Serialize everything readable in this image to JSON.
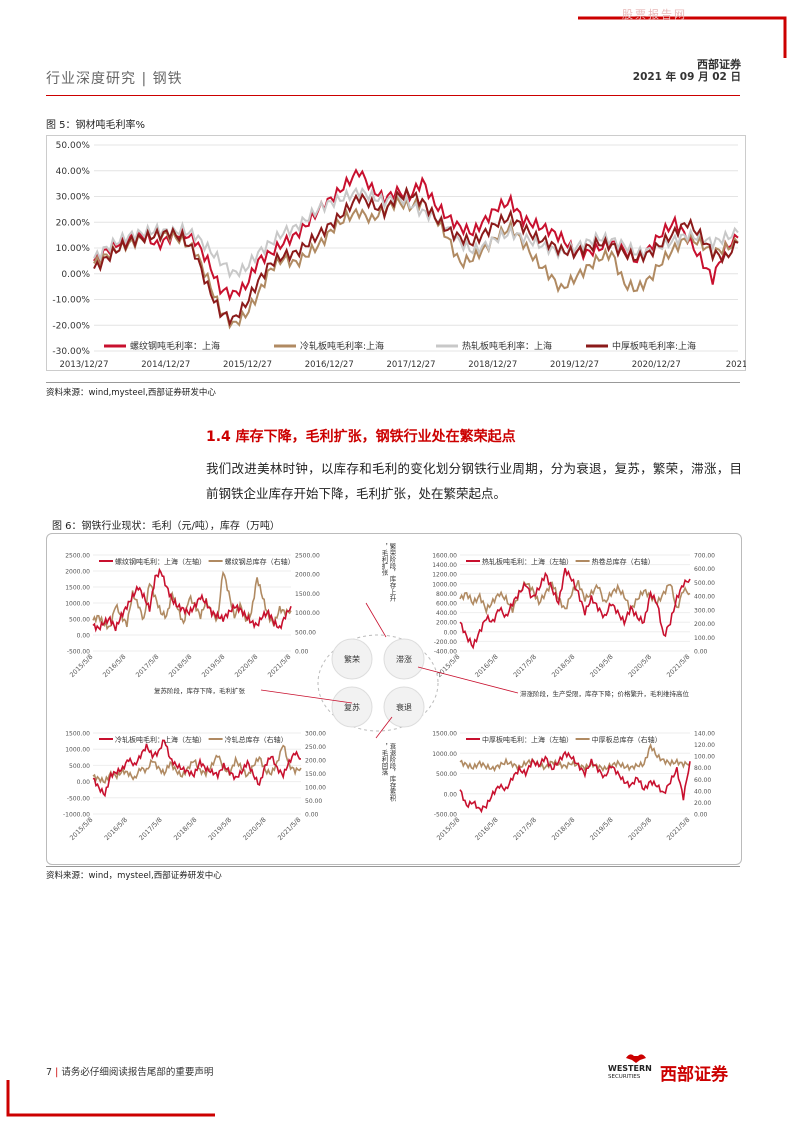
{
  "header": {
    "watermark": "股票报告网",
    "left": "行业深度研究 | 钢铁",
    "brand": "西部证券",
    "date": "2021 年 09 月 02 日"
  },
  "figure5": {
    "title": "图 5：钢材吨毛利率%",
    "source": "资料来源：wind,mysteel,西部证券研发中心",
    "chart_data": {
      "type": "line",
      "yticks": [
        "50.00%",
        "40.00%",
        "30.00%",
        "20.00%",
        "10.00%",
        "0.00%",
        "-10.00%",
        "-20.00%",
        "-30.00%"
      ],
      "ylim": [
        -30,
        50
      ],
      "xticks": [
        "2013/12/27",
        "2014/12/27",
        "2015/12/27",
        "2016/12/27",
        "2017/12/27",
        "2018/12/27",
        "2019/12/27",
        "2020/12/27",
        "2021/"
      ],
      "series": [
        {
          "name": "螺纹钢吨毛利率：上海",
          "color": "#c8102e",
          "values": [
            5,
            9,
            12,
            14,
            15,
            11,
            14,
            16,
            13,
            5,
            -6,
            -8,
            -5,
            5,
            8,
            12,
            15,
            20,
            26,
            30,
            35,
            40,
            33,
            29,
            32,
            30,
            36,
            27,
            22,
            18,
            16,
            21,
            26,
            28,
            21,
            19,
            17,
            14,
            9,
            8,
            10,
            12,
            9,
            5,
            10,
            16,
            20,
            14,
            6,
            -2,
            10,
            14
          ]
        },
        {
          "name": "冷轧板吨毛利率:上海",
          "color": "#b08a62",
          "values": [
            4,
            7,
            10,
            12,
            14,
            15,
            15,
            13,
            9,
            -2,
            -14,
            -20,
            -16,
            -8,
            2,
            6,
            4,
            8,
            12,
            18,
            22,
            24,
            21,
            25,
            28,
            26,
            28,
            22,
            14,
            4,
            6,
            10,
            15,
            18,
            12,
            5,
            0,
            -6,
            -2,
            2,
            6,
            8,
            -4,
            -6,
            -2,
            5,
            10,
            14,
            12,
            8,
            10,
            12
          ]
        },
        {
          "name": "热轧板吨毛利率：上海",
          "color": "#c8c8c8",
          "values": [
            6,
            10,
            13,
            15,
            16,
            17,
            16,
            17,
            15,
            10,
            5,
            0,
            2,
            8,
            12,
            16,
            18,
            22,
            26,
            28,
            30,
            32,
            30,
            28,
            30,
            27,
            24,
            22,
            18,
            12,
            9,
            11,
            14,
            16,
            14,
            12,
            10,
            8,
            10,
            12,
            14,
            13,
            11,
            8,
            9,
            11,
            13,
            15,
            14,
            12,
            14,
            16
          ]
        },
        {
          "name": "中厚板吨毛利率:上海",
          "color": "#8b1a1a",
          "values": [
            2,
            6,
            10,
            13,
            14,
            15,
            16,
            14,
            8,
            -5,
            -15,
            -18,
            -12,
            -3,
            4,
            7,
            8,
            12,
            16,
            20,
            25,
            30,
            27,
            24,
            30,
            31,
            28,
            22,
            17,
            14,
            12,
            16,
            20,
            22,
            18,
            14,
            12,
            9,
            8,
            10,
            12,
            11,
            8,
            6,
            8,
            12,
            16,
            20,
            15,
            8,
            6,
            12
          ]
        }
      ]
    }
  },
  "section": {
    "title": "1.4  库存下降，毛利扩张，钢铁行业处在繁荣起点",
    "body": "我们改进美林时钟，以库存和毛利的变化划分钢铁行业周期，分为衰退，复苏，繁荣，滞涨，目前钢铁企业库存开始下降，毛利扩张，处在繁荣起点。"
  },
  "figure6": {
    "title": "图 6：钢铁行业现状：毛利（元/吨），库存（万吨）",
    "source": "资料来源：wind，mysteel,西部证券研发中心",
    "xticks": [
      "2015/5/8",
      "2016/5/8",
      "2017/5/8",
      "2018/5/8",
      "2019/5/8",
      "2020/5/8",
      "2021/5/8"
    ],
    "charts": [
      {
        "legend_left": "螺纹钢吨毛利：上海（左轴）",
        "legend_right": "螺纹钢总库存（右轴）",
        "left_ticks": [
          "2500.00",
          "2000.00",
          "1500.00",
          "1000.00",
          "500.00",
          "0.00",
          "-500.00"
        ],
        "right_ticks": [
          "2500.00",
          "2000.00",
          "1500.00",
          "1000.00",
          "500.00",
          "0.00"
        ],
        "profit": [
          300,
          200,
          400,
          500,
          200,
          600,
          900,
          1200,
          1500,
          1200,
          800,
          1800,
          2000,
          1500,
          1100,
          900,
          800,
          700,
          900,
          1200,
          1000,
          700,
          600,
          500,
          700,
          900,
          800,
          600,
          400,
          300,
          600,
          700,
          400,
          200,
          600,
          900
        ],
        "stock": [
          800,
          900,
          700,
          600,
          1200,
          900,
          700,
          1500,
          1200,
          800,
          1800,
          1400,
          1000,
          900,
          1500,
          1100,
          700,
          1400,
          1200,
          900,
          1300,
          1000,
          800,
          2100,
          1500,
          900,
          1200,
          800,
          1000,
          1900,
          1400,
          900,
          700,
          1100,
          1000,
          1050
        ]
      },
      {
        "legend_left": "热轧板吨毛利：上海（左轴）",
        "legend_right": "热卷总库存（右轴）",
        "left_ticks": [
          "1600.00",
          "1400.00",
          "1200.00",
          "1000.00",
          "800.00",
          "600.00",
          "400.00",
          "200.00",
          "0.00",
          "-200.00",
          "-400.00"
        ],
        "right_ticks": [
          "700.00",
          "600.00",
          "500.00",
          "400.00",
          "300.00",
          "200.00",
          "100.00",
          "0.00"
        ],
        "profit": [
          200,
          -100,
          -300,
          0,
          300,
          200,
          500,
          300,
          600,
          800,
          1000,
          700,
          900,
          1200,
          900,
          600,
          1300,
          1100,
          800,
          400,
          700,
          500,
          300,
          600,
          400,
          200,
          500,
          300,
          200,
          800,
          600,
          -100,
          200,
          700,
          1000,
          1100
        ],
        "stock": [
          380,
          420,
          350,
          400,
          300,
          360,
          420,
          380,
          300,
          420,
          500,
          450,
          350,
          420,
          500,
          380,
          300,
          420,
          500,
          380,
          420,
          480,
          350,
          420,
          460,
          400,
          300,
          380,
          440,
          400,
          350,
          420,
          500,
          300,
          450,
          420
        ]
      },
      {
        "legend_left": "冷轧板吨毛利：上海（左轴）",
        "legend_right": "冷轧总库存（右轴）",
        "left_ticks": [
          "1500.00",
          "1000.00",
          "500.00",
          "0.00",
          "-500.00",
          "-1000.00"
        ],
        "right_ticks": [
          "300.00",
          "250.00",
          "200.00",
          "150.00",
          "100.00",
          "50.00",
          "0.00"
        ],
        "profit": [
          100,
          -200,
          -400,
          200,
          300,
          400,
          700,
          500,
          800,
          1100,
          800,
          900,
          1300,
          700,
          500,
          400,
          300,
          200,
          600,
          400,
          300,
          200,
          500,
          300,
          100,
          300,
          600,
          200,
          -100,
          500,
          800,
          400,
          200,
          600,
          900,
          700
        ],
        "stock": [
          140,
          130,
          120,
          150,
          140,
          160,
          150,
          130,
          170,
          160,
          200,
          170,
          150,
          190,
          160,
          140,
          170,
          200,
          160,
          150,
          180,
          220,
          170,
          150,
          200,
          170,
          140,
          180,
          210,
          160,
          150,
          190,
          260,
          180,
          160,
          170
        ]
      },
      {
        "legend_left": "中厚板吨毛利：上海（左轴）",
        "legend_right": "中厚板总库存（右轴）",
        "left_ticks": [
          "1500.00",
          "1000.00",
          "500.00",
          "0.00",
          "-500.00"
        ],
        "right_ticks": [
          "140.00",
          "120.00",
          "100.00",
          "80.00",
          "60.00",
          "40.00",
          "20.00",
          "0.00"
        ],
        "profit": [
          100,
          -300,
          -200,
          -400,
          -300,
          0,
          200,
          100,
          400,
          600,
          500,
          800,
          700,
          900,
          600,
          800,
          1000,
          900,
          700,
          500,
          800,
          600,
          400,
          700,
          500,
          300,
          200,
          400,
          100,
          300,
          200,
          0,
          300,
          600,
          -100,
          800
        ],
        "stock": [
          90,
          85,
          80,
          88,
          82,
          78,
          84,
          90,
          86,
          80,
          88,
          92,
          85,
          80,
          90,
          86,
          82,
          88,
          84,
          80,
          86,
          82,
          78,
          84,
          88,
          82,
          80,
          84,
          86,
          118,
          100,
          92,
          88,
          90,
          86,
          88
        ]
      }
    ],
    "clock": {
      "quadrants": [
        "繁荣",
        "滞涨",
        "衰退",
        "复苏"
      ],
      "labels": {
        "boom_side": "繁荣阶段，库存上升，毛利扩张",
        "stag": "滞涨阶段，生产受限，库存下降；价格繁升，毛利维持高位",
        "recov": "复苏阶段，库存下降，毛利扩张",
        "reces": "衰退阶段，库存累积，毛利回落"
      }
    }
  },
  "footer": {
    "page_no": "7",
    "disclaimer": "请务必仔细阅读报告尾部的重要声明",
    "logo_cn": "西部证券",
    "logo_en": "WESTERN",
    "logo_en2": "SECURITIES"
  }
}
